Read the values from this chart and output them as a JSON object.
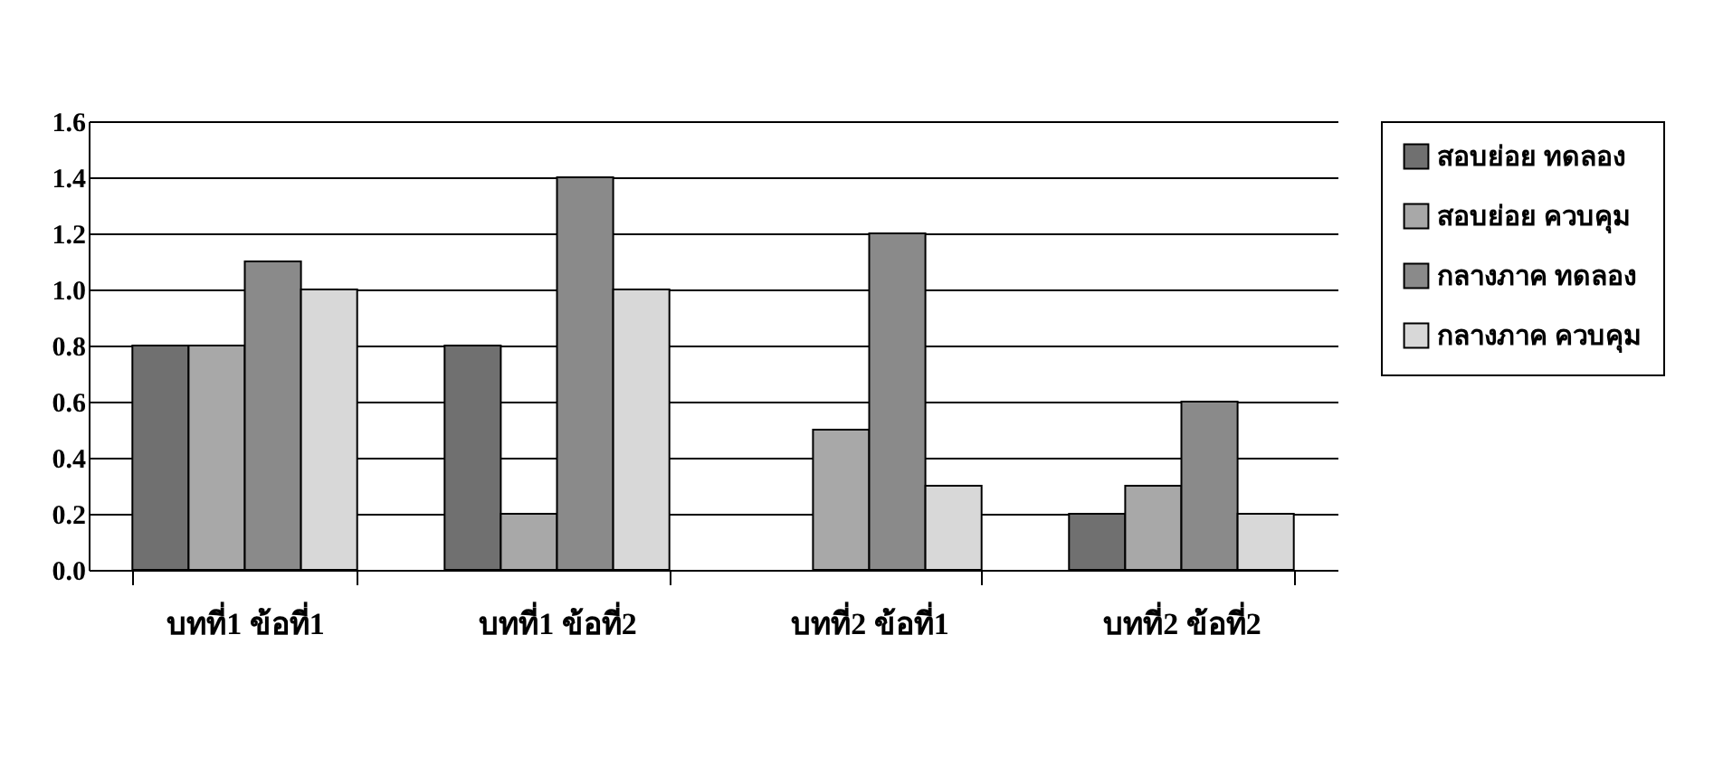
{
  "chart_data": {
    "type": "bar",
    "categories": [
      "บทที่1 ข้อที่1",
      "บทที่1 ข้อที่2",
      "บทที่2 ข้อที่1",
      "บทที่2 ข้อที่2"
    ],
    "series": [
      {
        "name": "สอบย่อย ทดลอง",
        "color": "#707070",
        "values": [
          0.8,
          0.8,
          null,
          0.2
        ]
      },
      {
        "name": "สอบย่อย ควบคุม",
        "color": "#a8a8a8",
        "values": [
          0.8,
          0.2,
          0.5,
          0.3
        ]
      },
      {
        "name": "กลางภาค ทดลอง",
        "color": "#8a8a8a",
        "values": [
          1.1,
          1.4,
          1.2,
          0.6
        ]
      },
      {
        "name": "กลางภาค ควบคุม",
        "color": "#d8d8d8",
        "values": [
          1.0,
          1.0,
          0.3,
          0.2
        ]
      }
    ],
    "ylim": [
      0,
      1.6
    ],
    "yticks": [
      {
        "value": 0,
        "label": "0.0"
      },
      0.2,
      0.4,
      0.6,
      0.8,
      {
        "value": 1,
        "label": "1.0"
      },
      1.2,
      1.4,
      1.6
    ],
    "grid": "y",
    "legend": "right"
  }
}
